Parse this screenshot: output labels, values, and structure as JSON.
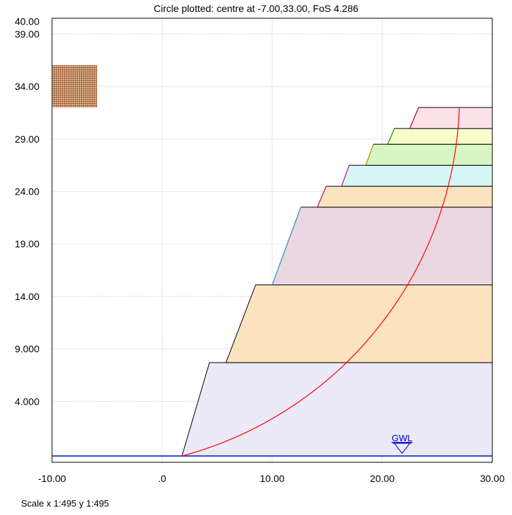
{
  "chart_data": {
    "type": "line",
    "title": "Circle plotted: centre at -7.00,33.00, FoS  4.286",
    "x_ticks": [
      "-10.00",
      ".0",
      "10.00",
      "20.00",
      "30.00"
    ],
    "x_tick_values": [
      -10,
      0,
      10,
      20,
      30
    ],
    "y_ticks": [
      "40.00",
      "39.00",
      "34.00",
      "29.00",
      "24.00",
      "19.00",
      "14.00",
      "9.000",
      "4.000"
    ],
    "y_tick_values": [
      40,
      39,
      34,
      29,
      24,
      19,
      14,
      9,
      4
    ],
    "xlim": [
      -10,
      30
    ],
    "ylim": [
      -1.8,
      40.5
    ],
    "grid": true,
    "layers": [
      {
        "name": "layer-1",
        "fill": "#ece9f8",
        "stroke": "#000000",
        "points": [
          [
            -10,
            -1.2
          ],
          [
            1.8,
            -1.2
          ],
          [
            4.3,
            7.7
          ],
          [
            30,
            7.7
          ],
          [
            30,
            -1.2
          ]
        ]
      },
      {
        "name": "layer-2",
        "fill": "#fbe3c0",
        "stroke": "#000000",
        "points": [
          [
            5.8,
            7.7
          ],
          [
            8.5,
            15.1
          ],
          [
            30,
            15.1
          ],
          [
            30,
            7.7
          ]
        ]
      },
      {
        "name": "layer-3",
        "fill": "#ebd7e2",
        "stroke": "#3a9fb8",
        "points": [
          [
            10.0,
            15.1
          ],
          [
            12.6,
            22.5
          ],
          [
            30,
            22.5
          ],
          [
            30,
            15.1
          ]
        ]
      },
      {
        "name": "layer-4",
        "fill": "#fbe3c0",
        "stroke": "#c0187a",
        "points": [
          [
            14.1,
            22.5
          ],
          [
            14.9,
            24.5
          ],
          [
            30,
            24.5
          ],
          [
            30,
            22.5
          ]
        ]
      },
      {
        "name": "layer-5",
        "fill": "#d9f6f6",
        "stroke": "#c020c0",
        "points": [
          [
            16.3,
            24.5
          ],
          [
            17.0,
            26.5
          ],
          [
            30,
            26.5
          ],
          [
            30,
            24.5
          ]
        ]
      },
      {
        "name": "layer-6",
        "fill": "#d8f5c4",
        "stroke": "#b8a000",
        "points": [
          [
            18.5,
            26.5
          ],
          [
            19.2,
            28.5
          ],
          [
            30,
            28.5
          ],
          [
            30,
            26.5
          ]
        ]
      },
      {
        "name": "layer-7",
        "fill": "#f8fccc",
        "stroke": "#2a9a2a",
        "points": [
          [
            20.5,
            28.5
          ],
          [
            21.1,
            30.0
          ],
          [
            30,
            30.0
          ],
          [
            30,
            28.5
          ]
        ]
      },
      {
        "name": "layer-8",
        "fill": "#fbe2e8",
        "stroke": "#d0102a",
        "points": [
          [
            22.5,
            30.0
          ],
          [
            23.3,
            32.0
          ],
          [
            30,
            32.0
          ],
          [
            30,
            30.0
          ]
        ]
      }
    ],
    "circle": {
      "centre_x": -7.0,
      "centre_y": 33.0,
      "color": "#ff0000",
      "entry": [
        27.0,
        32.0
      ],
      "exit": [
        1.8,
        -1.2
      ]
    },
    "search_grid": {
      "x_range": [
        -10,
        -5.9
      ],
      "y_range": [
        32,
        36
      ],
      "color": "#8b3a1a"
    },
    "ground_line": {
      "y": -1.2,
      "color": "#3050d0"
    },
    "gwl": {
      "label": "GWL",
      "x": 21.8,
      "y": -1.2,
      "color": "#0000cc"
    }
  },
  "footer": {
    "scale_text": "Scale x 1:495  y 1:495"
  }
}
